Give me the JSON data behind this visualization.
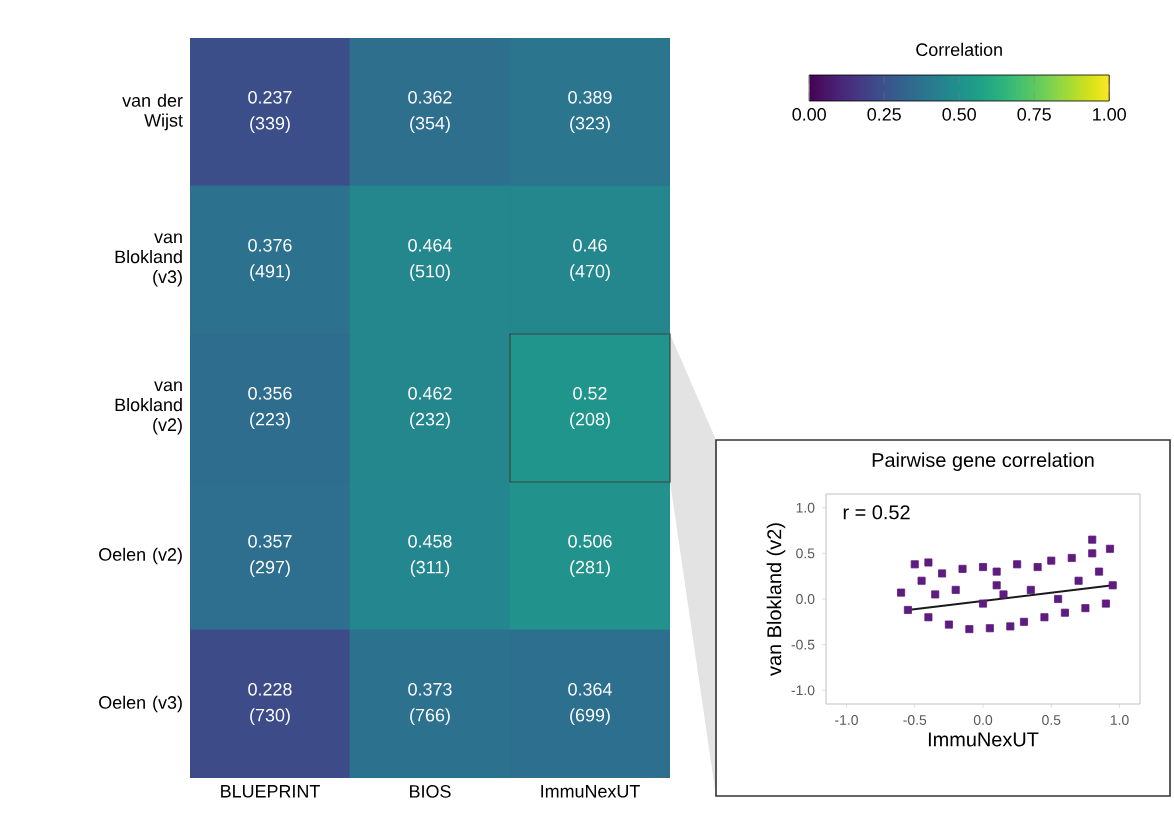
{
  "chart_data": [
    {
      "type": "heatmap",
      "categories": [
        "BLUEPRINT",
        "BIOS",
        "ImmuNexUT"
      ],
      "y_categories": [
        "van der Wijst",
        "van Blokland (v3)",
        "van Blokland (v2)",
        "Oelen (v2)",
        "Oelen (v3)"
      ],
      "cells": [
        [
          0.237,
          0.362,
          0.389
        ],
        [
          0.376,
          0.464,
          0.46
        ],
        [
          0.356,
          0.462,
          0.52
        ],
        [
          0.357,
          0.458,
          0.506
        ],
        [
          0.228,
          0.373,
          0.364
        ]
      ],
      "cell_labels": [
        [
          "0.237 (339)",
          "0.362 (354)",
          "0.389 (323)"
        ],
        [
          "0.376 (491)",
          "0.464 (510)",
          "0.46 (470)"
        ],
        [
          "0.356 (223)",
          "0.462 (232)",
          "0.52 (208)"
        ],
        [
          "0.357 (297)",
          "0.458 (311)",
          "0.506 (281)"
        ],
        [
          "0.228 (730)",
          "0.373 (766)",
          "0.364 (699)"
        ]
      ],
      "clim": [
        0,
        1
      ],
      "cticks": [
        {
          "value": 0,
          "label": "0.00"
        },
        {
          "value": 0.25,
          "label": "0.25"
        },
        {
          "value": 0.5,
          "label": "0.50"
        },
        {
          "value": 0.75,
          "label": "0.75"
        },
        {
          "value": 1,
          "label": "1.00"
        }
      ],
      "clabel": "Correlation"
    },
    {
      "type": "scatter",
      "title": "Pairwise gene correlation",
      "xlabel": "ImmuNexUT",
      "ylabel": "van Blokland (v2)",
      "annotations": [
        "r = 0.52"
      ],
      "xlim": [
        -1.15,
        1.15
      ],
      "ylim": [
        -1.15,
        1.15
      ],
      "xticks": [
        {
          "value": -1,
          "label": "-1.0"
        },
        {
          "value": -0.5,
          "label": "-0.5"
        },
        {
          "value": 0,
          "label": "0.0"
        },
        {
          "value": 0.5,
          "label": "0.5"
        },
        {
          "value": 1,
          "label": "1.0"
        }
      ],
      "yticks": [
        {
          "value": -1,
          "label": "-1.0"
        },
        {
          "value": -0.5,
          "label": "-0.5"
        },
        {
          "value": 0,
          "label": "0.0"
        },
        {
          "value": 0.5,
          "label": "0.5"
        },
        {
          "value": 1,
          "label": "1.0"
        }
      ],
      "series": [
        {
          "type": "scatter",
          "marker": "square",
          "color": "#5e1c7e",
          "x": [
            -0.6,
            -0.55,
            -0.5,
            -0.45,
            -0.4,
            -0.4,
            -0.35,
            -0.3,
            -0.25,
            -0.2,
            -0.15,
            -0.1,
            0,
            0,
            0.05,
            0.1,
            0.1,
            0.15,
            0.2,
            0.25,
            0.3,
            0.35,
            0.4,
            0.45,
            0.5,
            0.55,
            0.6,
            0.65,
            0.7,
            0.75,
            0.8,
            0.8,
            0.85,
            0.9,
            0.93,
            0.95
          ],
          "values": [
            0.07,
            -0.12,
            0.38,
            0.2,
            -0.2,
            0.4,
            0.05,
            0.28,
            -0.28,
            0.1,
            0.33,
            -0.33,
            0.35,
            -0.05,
            -0.32,
            0.3,
            0.15,
            0.05,
            -0.3,
            0.38,
            -0.25,
            0.1,
            0.35,
            -0.2,
            0.42,
            0,
            -0.15,
            0.45,
            0.2,
            -0.1,
            0.5,
            0.65,
            0.3,
            -0.05,
            0.55,
            0.15
          ]
        },
        {
          "type": "line",
          "color": "#1a1a1a",
          "x": [
            -0.55,
            0.95
          ],
          "values": [
            -0.12,
            0.15
          ]
        }
      ]
    }
  ]
}
